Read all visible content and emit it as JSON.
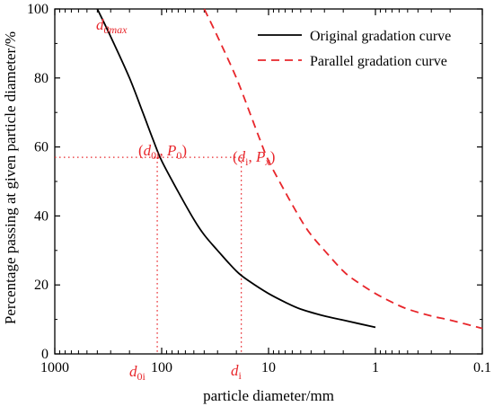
{
  "chart_data": {
    "type": "line",
    "xlabel": "particle diameter/mm",
    "ylabel": "Percentage passing at given particle diameter/%",
    "x_scale": "log",
    "x_reversed": true,
    "xlim": [
      1000,
      0.1
    ],
    "ylim": [
      0,
      100
    ],
    "x_ticks": [
      1000,
      100,
      10,
      1,
      0.1
    ],
    "x_tick_labels": [
      "1000",
      "100",
      "10",
      "1",
      "0.1"
    ],
    "y_ticks": [
      0,
      20,
      40,
      60,
      80,
      100
    ],
    "y_tick_labels": [
      "0",
      "20",
      "40",
      "60",
      "80",
      "100"
    ],
    "grid": false,
    "legend_position": "top-right",
    "series": [
      {
        "name": "Original gradation curve",
        "color": "#000000",
        "dash": "solid",
        "points": [
          [
            400,
            100
          ],
          [
            300,
            92
          ],
          [
            200,
            80
          ],
          [
            150,
            70
          ],
          [
            120,
            62
          ],
          [
            100,
            56
          ],
          [
            70,
            47
          ],
          [
            50,
            39
          ],
          [
            40,
            34.5
          ],
          [
            30,
            30
          ],
          [
            20,
            24
          ],
          [
            15,
            21
          ],
          [
            10,
            17.5
          ],
          [
            7,
            15
          ],
          [
            5,
            13
          ],
          [
            3,
            11
          ],
          [
            2,
            9.8
          ],
          [
            1,
            7.7
          ]
        ]
      },
      {
        "name": "Parallel gradation curve",
        "color": "#e8262b",
        "dash": "dashed",
        "points": [
          [
            40,
            100
          ],
          [
            30,
            92
          ],
          [
            20,
            80
          ],
          [
            15,
            70
          ],
          [
            12,
            62
          ],
          [
            10,
            56
          ],
          [
            7,
            47
          ],
          [
            5,
            39
          ],
          [
            4,
            34.5
          ],
          [
            3,
            30
          ],
          [
            2,
            24
          ],
          [
            1.5,
            21
          ],
          [
            1,
            17.5
          ],
          [
            0.7,
            15
          ],
          [
            0.5,
            13
          ],
          [
            0.3,
            11
          ],
          [
            0.2,
            9.8
          ],
          [
            0.1,
            7.4
          ]
        ]
      }
    ],
    "reference_lines": {
      "color": "#e8262b",
      "y": 57,
      "x_points": [
        110,
        18
      ]
    },
    "annotations": {
      "dmax_base": "d",
      "dmax_sub": "0max",
      "p1_open": "(",
      "p1_d": "d",
      "p1_d_sub": "0i",
      "p1_sep": ",  ",
      "p1_p": "P",
      "p1_p_sub": "0",
      "p1_close": ")",
      "p2_open": "(",
      "p2_d": "d",
      "p2_d_sub": "i",
      "p2_sep": ",  ",
      "p2_p": "P",
      "p2_p_sub": "x",
      "p2_close": ")",
      "x1_base": "d",
      "x1_sub": "0i",
      "x2_base": "d",
      "x2_sub": "i",
      "color": "#e8262b"
    }
  }
}
